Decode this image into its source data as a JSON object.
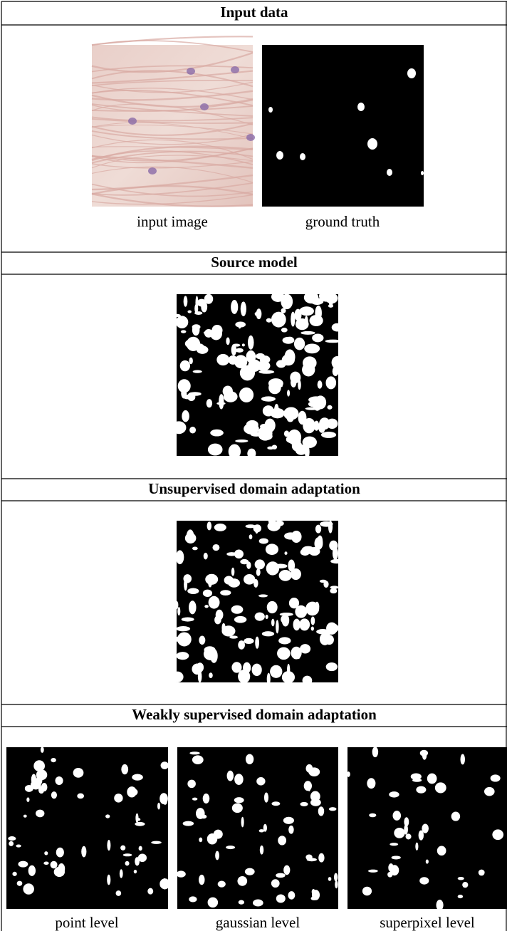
{
  "sections": [
    {
      "title": "Input data",
      "captions": [
        "input image",
        "ground truth"
      ]
    },
    {
      "title": "Source model"
    },
    {
      "title": "Unsupervised domain adaptation"
    },
    {
      "title": "Weakly supervised domain adaptation",
      "captions": [
        "point level",
        "gaussian level",
        "superpixel level"
      ]
    }
  ]
}
